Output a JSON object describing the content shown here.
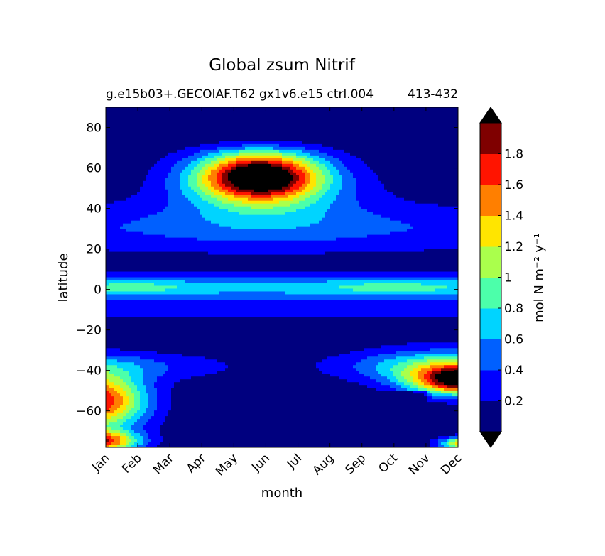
{
  "chart_data": {
    "type": "heatmap",
    "title": "Global zsum Nitrif",
    "subtitle": "g.e15b03+.GECOIAF.T62 gx1v6.e15 ctrl.004",
    "subtitle_right": "413-432",
    "xlabel": "month",
    "ylabel": "latitude",
    "x_categories": [
      "Jan",
      "Feb",
      "Mar",
      "Apr",
      "May",
      "Jun",
      "Jul",
      "Aug",
      "Sep",
      "Oct",
      "Nov",
      "Dec"
    ],
    "y_ticks": [
      "80",
      "60",
      "40",
      "20",
      "0",
      "−20",
      "−40",
      "−60"
    ],
    "y_tick_values": [
      80,
      60,
      40,
      20,
      0,
      -20,
      -40,
      -60
    ],
    "ylim": [
      -78,
      90
    ],
    "colorbar": {
      "label": "mol N m⁻² y⁻¹",
      "tick_labels": [
        "0.2",
        "0.4",
        "0.6",
        "0.8",
        "1",
        "1.2",
        "1.4",
        "1.6",
        "1.8"
      ],
      "levels": [
        0,
        0.2,
        0.4,
        0.6,
        0.8,
        1.0,
        1.2,
        1.4,
        1.6,
        1.8,
        2.0
      ],
      "colors": [
        "#00007f",
        "#0000ff",
        "#0060ff",
        "#00d4ff",
        "#4cffaa",
        "#aaff4c",
        "#ffe500",
        "#ff7f00",
        "#ff1400",
        "#7f0000"
      ],
      "over_color": "#000000",
      "under_color": "#000000",
      "extend": "both"
    },
    "features": [
      {
        "name": "north-bloom",
        "month": "Jun",
        "lat": 57,
        "peak": 2.1
      },
      {
        "name": "southern-early",
        "month": "Jan",
        "lat": -55,
        "peak": 1.6
      },
      {
        "name": "southern-late",
        "month": "Dec",
        "lat": -45,
        "peak": 1.9
      },
      {
        "name": "equatorial-band",
        "lat": 0,
        "peak": 0.85
      }
    ]
  }
}
